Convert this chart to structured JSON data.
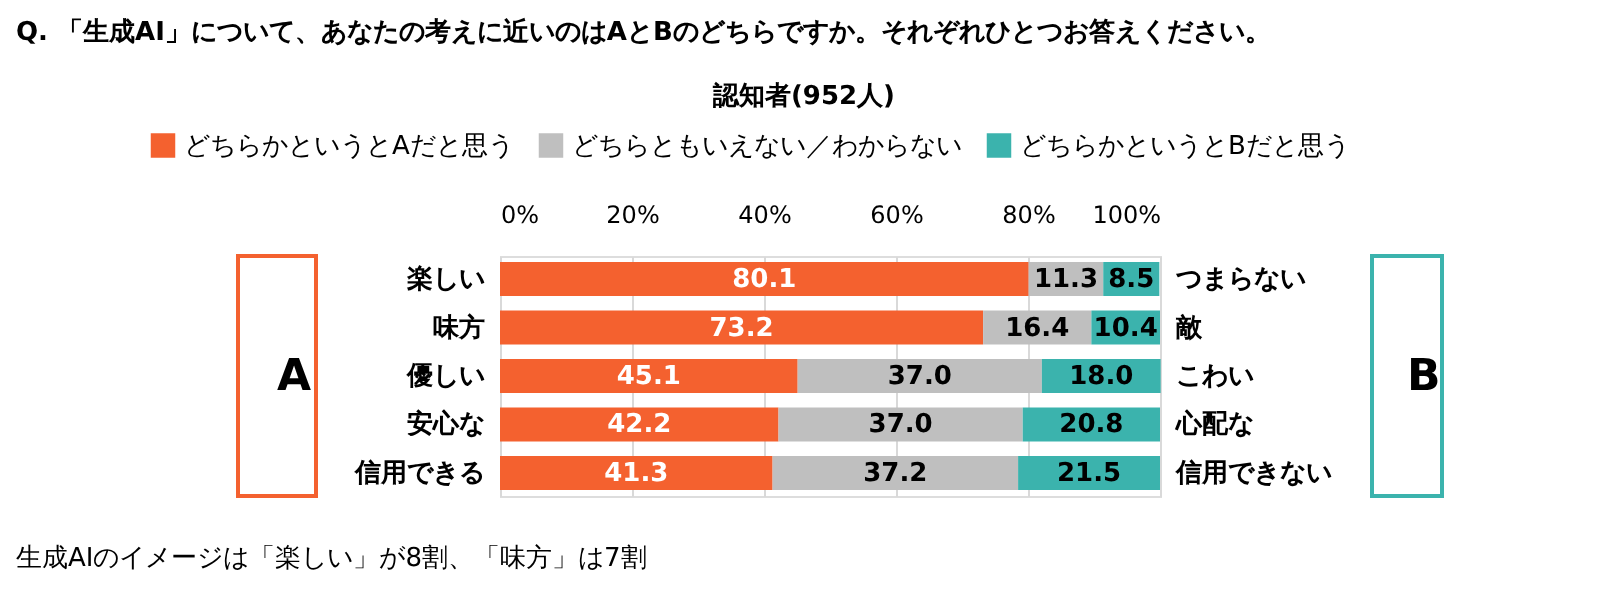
{
  "chart_data": {
    "type": "bar",
    "orientation": "horizontal",
    "stacked": true,
    "title": "Q. 「生成AI」について、あなたの考えに近いのはAとBのどちらですか。それぞれひとつお答えください。",
    "subtitle": "認知者(952人)",
    "categories": [
      "楽しい",
      "味方",
      "優しい",
      "安心な",
      "信用できる"
    ],
    "y2_categories": [
      "つまらない",
      "敵",
      "こわい",
      "心配な",
      "信用できない"
    ],
    "series": [
      {
        "name": "どちらかというとAだと思う",
        "color": "#f4612f",
        "values": [
          80.1,
          73.2,
          45.1,
          42.2,
          41.3
        ],
        "value_labels": [
          "80.1",
          "73.2",
          "45.1",
          "42.2",
          "41.3"
        ]
      },
      {
        "name": "どちらともいえない／わからない",
        "color": "#bfbfbf",
        "values": [
          11.3,
          16.4,
          37.0,
          37.0,
          37.2
        ],
        "value_labels": [
          "11.3",
          "16.4",
          "37.0",
          "37.0",
          "37.2"
        ]
      },
      {
        "name": "どちらかというとBだと思う",
        "color": "#3bb3ad",
        "values": [
          8.5,
          10.4,
          18.0,
          20.8,
          21.5
        ],
        "value_labels": [
          "8.5",
          "10.4",
          "18.0",
          "20.8",
          "21.5"
        ]
      }
    ],
    "xlim": [
      0,
      100
    ],
    "xticks": [
      {
        "value": 0,
        "label": "0%"
      },
      {
        "value": 20,
        "label": "20%"
      },
      {
        "value": 40,
        "label": "40%"
      },
      {
        "value": 60,
        "label": "60%"
      },
      {
        "value": 80,
        "label": "80%"
      },
      {
        "value": 100,
        "label": "100%"
      }
    ],
    "grid": "x",
    "legend": "top",
    "annotations": [
      "A",
      "B",
      "生成AIのイメージは「楽しい」が8割、「味方」は7割"
    ]
  }
}
